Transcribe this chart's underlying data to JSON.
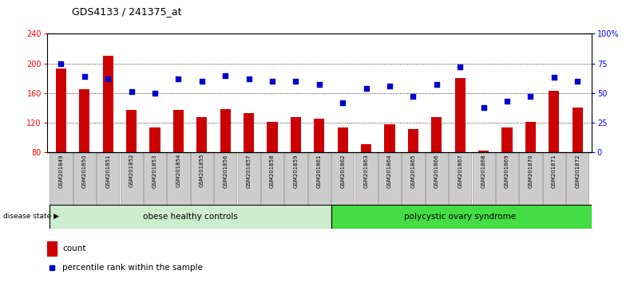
{
  "title": "GDS4133 / 241375_at",
  "samples": [
    "GSM201849",
    "GSM201850",
    "GSM201851",
    "GSM201852",
    "GSM201853",
    "GSM201854",
    "GSM201855",
    "GSM201856",
    "GSM201857",
    "GSM201858",
    "GSM201859",
    "GSM201861",
    "GSM201862",
    "GSM201863",
    "GSM201864",
    "GSM201865",
    "GSM201866",
    "GSM201867",
    "GSM201868",
    "GSM201869",
    "GSM201870",
    "GSM201871",
    "GSM201872"
  ],
  "bar_values": [
    193,
    165,
    210,
    137,
    113,
    137,
    128,
    138,
    133,
    121,
    127,
    125,
    113,
    91,
    118,
    111,
    128,
    180,
    82,
    113,
    121,
    163,
    140
  ],
  "dot_pct": [
    75,
    64,
    62,
    51,
    50,
    62,
    60,
    65,
    62,
    60,
    60,
    57,
    42,
    54,
    56,
    47,
    57,
    72,
    38,
    43,
    47,
    63,
    60
  ],
  "ylim_left": [
    80,
    240
  ],
  "ylim_right": [
    0,
    100
  ],
  "yticks_left": [
    80,
    120,
    160,
    200,
    240
  ],
  "yticks_right": [
    0,
    25,
    50,
    75,
    100
  ],
  "ytick_labels_right": [
    "0",
    "25",
    "50",
    "75",
    "100%"
  ],
  "bar_color": "#cc0000",
  "dot_color": "#0000cc",
  "group1_label": "obese healthy controls",
  "group2_label": "polycystic ovary syndrome",
  "group1_count": 12,
  "disease_state_label": "disease state",
  "legend_bar_label": "count",
  "legend_dot_label": "percentile rank within the sample",
  "group1_color": "#cceecc",
  "group2_color": "#44dd44",
  "xticklabel_bg": "#cccccc",
  "grid_lines_at": [
    120,
    160,
    200
  ],
  "fig_width": 7.84,
  "fig_height": 3.54,
  "fig_dpi": 100
}
